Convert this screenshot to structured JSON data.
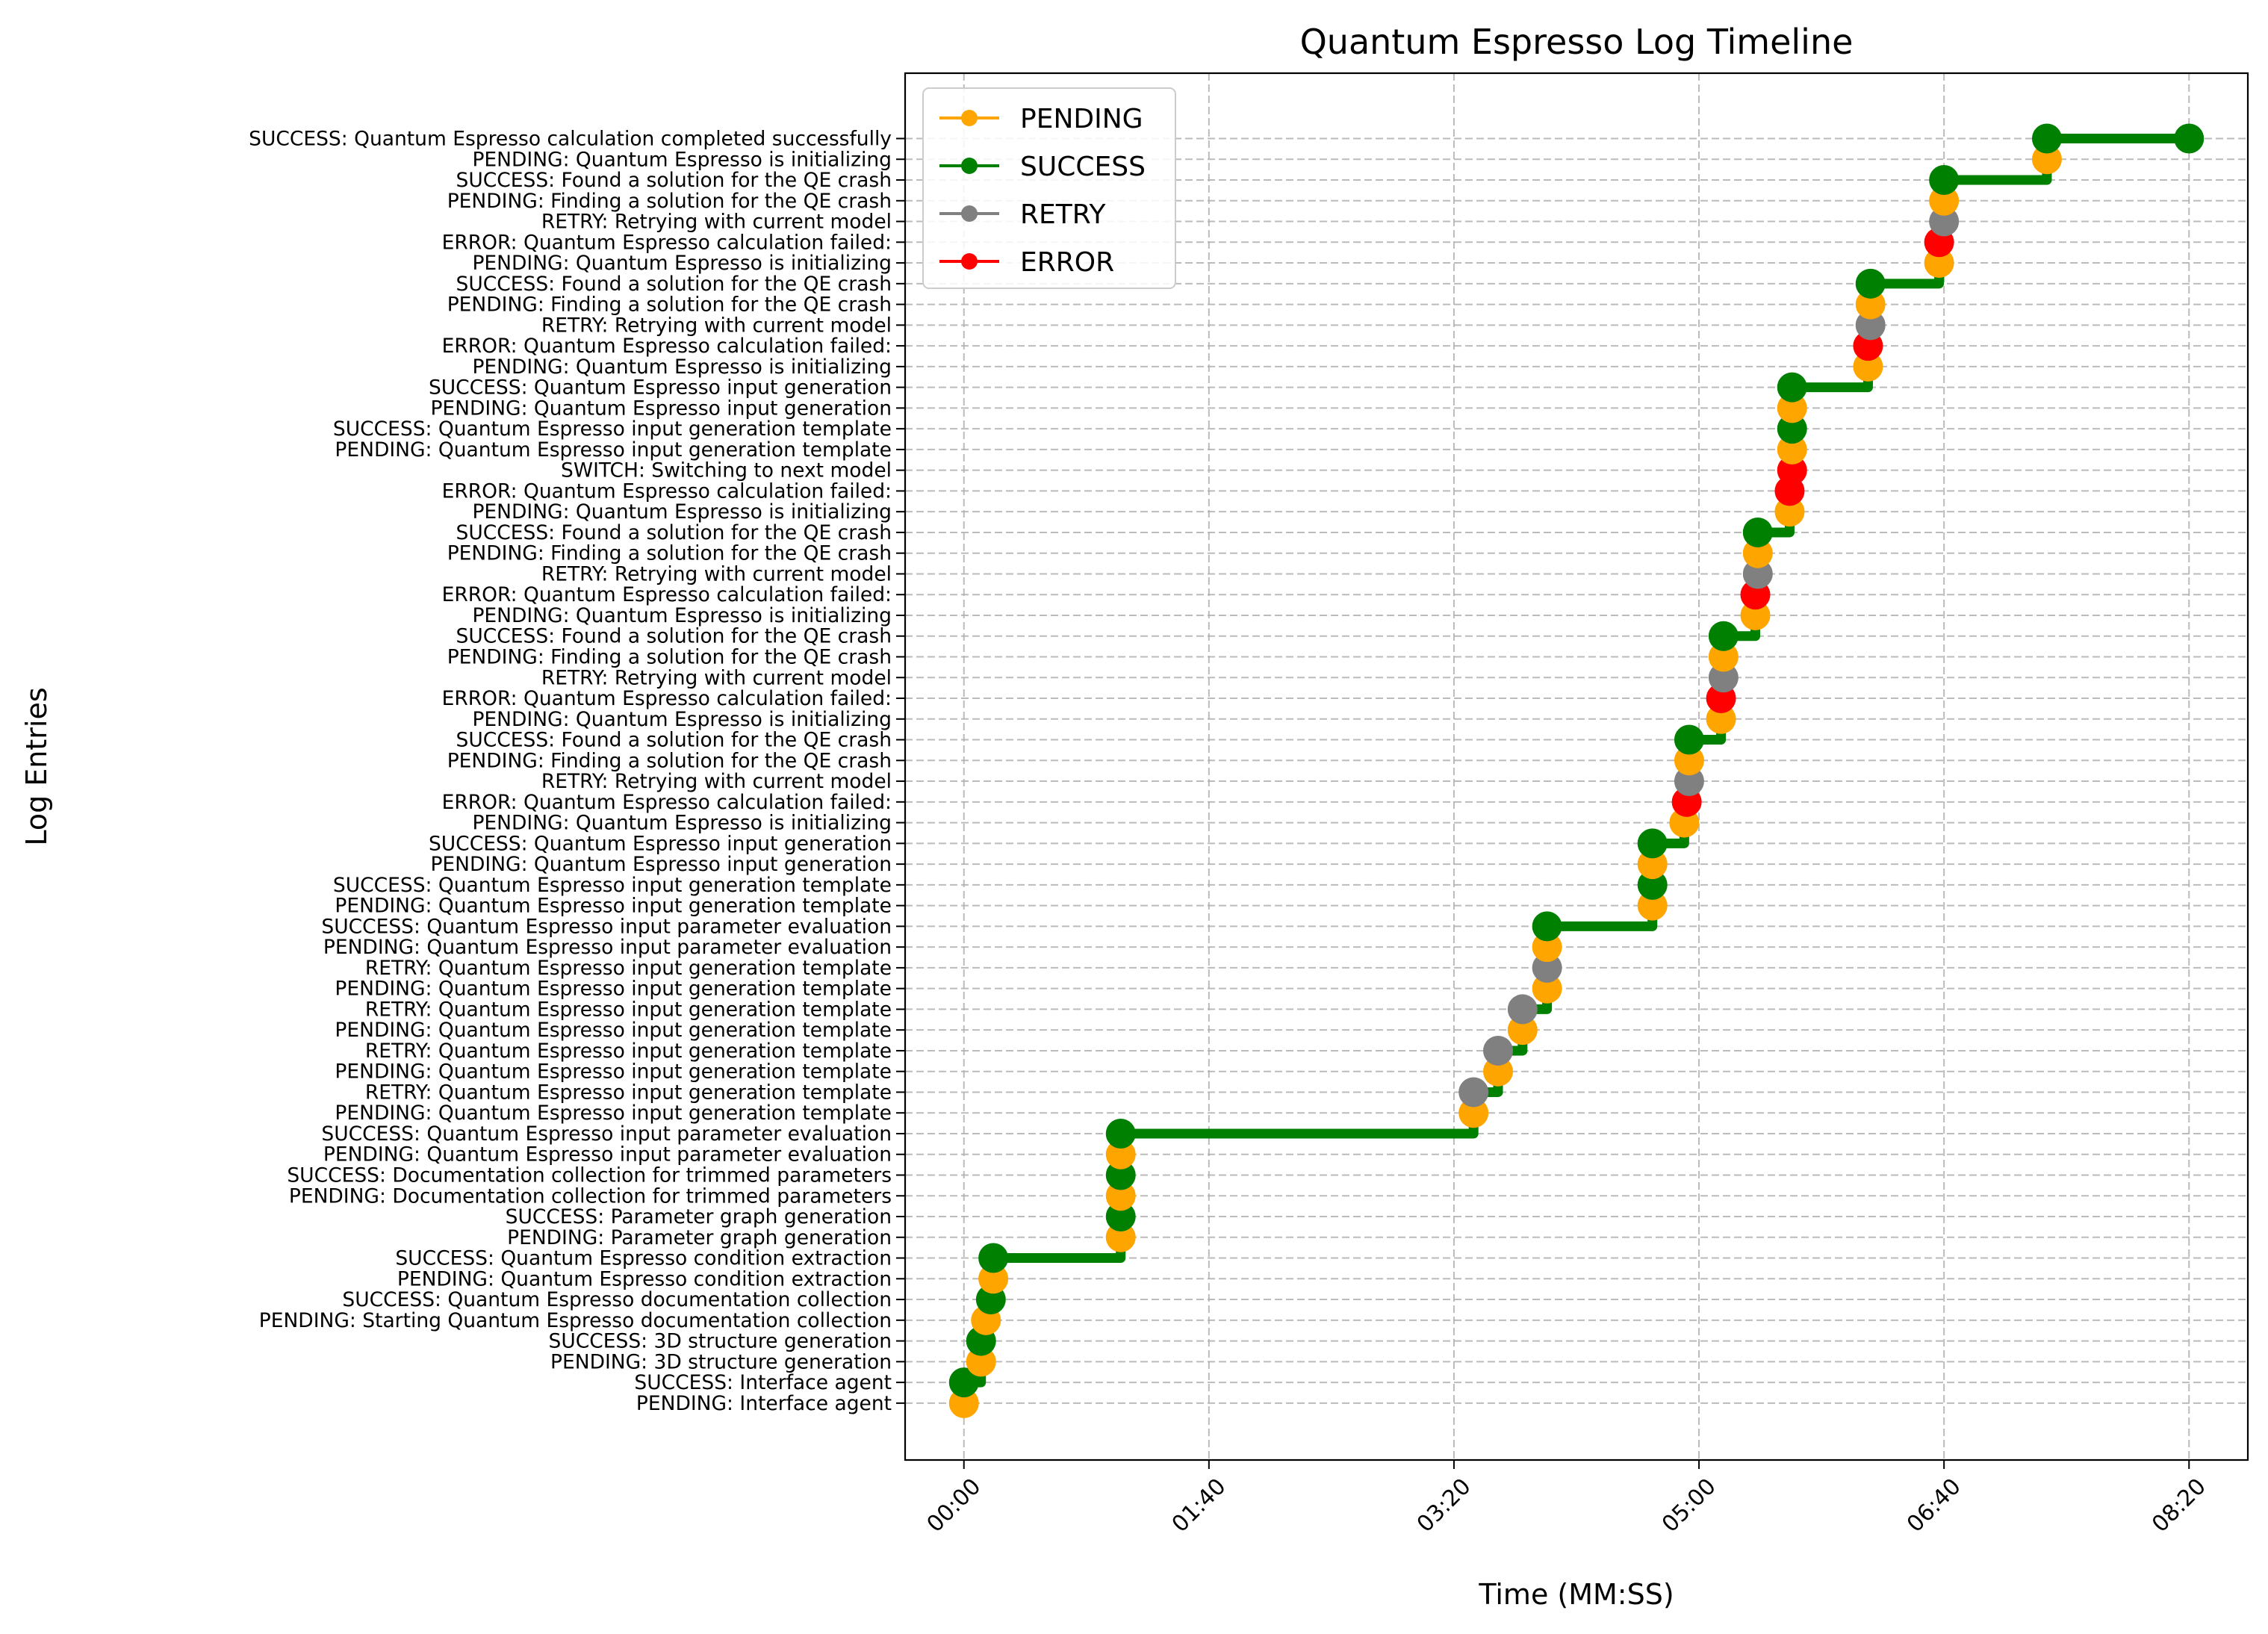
{
  "chart_data": {
    "type": "scatter",
    "title": "Quantum Espresso Log Timeline",
    "xlabel": "Time (MM:SS)",
    "ylabel": "Log Entries",
    "xlim": [
      -24,
      524
    ],
    "xticks": [
      0,
      100,
      200,
      300,
      400,
      500
    ],
    "xtick_labels": [
      "00:00",
      "01:40",
      "03:20",
      "05:00",
      "06:40",
      "08:20"
    ],
    "grid": true,
    "legend_position": "top-left",
    "colors": {
      "PENDING": "#ffa500",
      "SUCCESS": "#008000",
      "RETRY": "#808080",
      "ERROR": "#ff0000",
      "SWITCH": "#ff0000",
      "connector": "#008000",
      "grid": "#b0b0b0"
    },
    "legend": [
      "PENDING",
      "SUCCESS",
      "RETRY",
      "ERROR"
    ],
    "entries": [
      {
        "label": "PENDING: Interface agent",
        "status": "PENDING",
        "t": 0
      },
      {
        "label": "SUCCESS: Interface agent",
        "status": "SUCCESS",
        "t": 0
      },
      {
        "label": "PENDING: 3D structure generation",
        "status": "PENDING",
        "t": 7
      },
      {
        "label": "SUCCESS: 3D structure generation",
        "status": "SUCCESS",
        "t": 7
      },
      {
        "label": "PENDING: Starting Quantum Espresso documentation collection",
        "status": "PENDING",
        "t": 9
      },
      {
        "label": "SUCCESS: Quantum Espresso documentation collection",
        "status": "SUCCESS",
        "t": 11
      },
      {
        "label": "PENDING: Quantum Espresso condition extraction",
        "status": "PENDING",
        "t": 12
      },
      {
        "label": "SUCCESS: Quantum Espresso condition extraction",
        "status": "SUCCESS",
        "t": 12
      },
      {
        "label": "PENDING: Parameter graph generation",
        "status": "PENDING",
        "t": 64
      },
      {
        "label": "SUCCESS: Parameter graph generation",
        "status": "SUCCESS",
        "t": 64
      },
      {
        "label": "PENDING: Documentation collection for trimmed parameters",
        "status": "PENDING",
        "t": 64
      },
      {
        "label": "SUCCESS: Documentation collection for trimmed parameters",
        "status": "SUCCESS",
        "t": 64
      },
      {
        "label": "PENDING: Quantum Espresso input parameter evaluation",
        "status": "PENDING",
        "t": 64
      },
      {
        "label": "SUCCESS: Quantum Espresso input parameter evaluation",
        "status": "SUCCESS",
        "t": 64
      },
      {
        "label": "PENDING: Quantum Espresso input generation template",
        "status": "PENDING",
        "t": 208
      },
      {
        "label": "RETRY: Quantum Espresso input generation template",
        "status": "RETRY",
        "t": 208
      },
      {
        "label": "PENDING: Quantum Espresso input generation template",
        "status": "PENDING",
        "t": 218
      },
      {
        "label": "RETRY: Quantum Espresso input generation template",
        "status": "RETRY",
        "t": 218
      },
      {
        "label": "PENDING: Quantum Espresso input generation template",
        "status": "PENDING",
        "t": 228
      },
      {
        "label": "RETRY: Quantum Espresso input generation template",
        "status": "RETRY",
        "t": 228
      },
      {
        "label": "PENDING: Quantum Espresso input generation template",
        "status": "PENDING",
        "t": 238
      },
      {
        "label": "RETRY: Quantum Espresso input generation template",
        "status": "RETRY",
        "t": 238
      },
      {
        "label": "PENDING: Quantum Espresso input parameter evaluation",
        "status": "PENDING",
        "t": 238
      },
      {
        "label": "SUCCESS: Quantum Espresso input parameter evaluation",
        "status": "SUCCESS",
        "t": 238
      },
      {
        "label": "PENDING: Quantum Espresso input generation template",
        "status": "PENDING",
        "t": 281
      },
      {
        "label": "SUCCESS: Quantum Espresso input generation template",
        "status": "SUCCESS",
        "t": 281
      },
      {
        "label": "PENDING: Quantum Espresso input generation",
        "status": "PENDING",
        "t": 281
      },
      {
        "label": "SUCCESS: Quantum Espresso input generation",
        "status": "SUCCESS",
        "t": 281
      },
      {
        "label": "PENDING: Quantum Espresso is initializing",
        "status": "PENDING",
        "t": 294
      },
      {
        "label": "ERROR: Quantum Espresso calculation failed: ",
        "status": "ERROR",
        "t": 295
      },
      {
        "label": "RETRY: Retrying with current model",
        "status": "RETRY",
        "t": 296
      },
      {
        "label": "PENDING: Finding a solution for the QE crash",
        "status": "PENDING",
        "t": 296
      },
      {
        "label": "SUCCESS: Found a solution for the QE crash",
        "status": "SUCCESS",
        "t": 296
      },
      {
        "label": "PENDING: Quantum Espresso is initializing",
        "status": "PENDING",
        "t": 309
      },
      {
        "label": "ERROR: Quantum Espresso calculation failed: ",
        "status": "ERROR",
        "t": 309
      },
      {
        "label": "RETRY: Retrying with current model",
        "status": "RETRY",
        "t": 310
      },
      {
        "label": "PENDING: Finding a solution for the QE crash",
        "status": "PENDING",
        "t": 310
      },
      {
        "label": "SUCCESS: Found a solution for the QE crash",
        "status": "SUCCESS",
        "t": 310
      },
      {
        "label": "PENDING: Quantum Espresso is initializing",
        "status": "PENDING",
        "t": 323
      },
      {
        "label": "ERROR: Quantum Espresso calculation failed: ",
        "status": "ERROR",
        "t": 323
      },
      {
        "label": "RETRY: Retrying with current model",
        "status": "RETRY",
        "t": 324
      },
      {
        "label": "PENDING: Finding a solution for the QE crash",
        "status": "PENDING",
        "t": 324
      },
      {
        "label": "SUCCESS: Found a solution for the QE crash",
        "status": "SUCCESS",
        "t": 324
      },
      {
        "label": "PENDING: Quantum Espresso is initializing",
        "status": "PENDING",
        "t": 337
      },
      {
        "label": "ERROR: Quantum Espresso calculation failed: ",
        "status": "ERROR",
        "t": 337
      },
      {
        "label": "SWITCH: Switching to next model",
        "status": "SWITCH",
        "t": 338
      },
      {
        "label": "PENDING: Quantum Espresso input generation template",
        "status": "PENDING",
        "t": 338
      },
      {
        "label": "SUCCESS: Quantum Espresso input generation template",
        "status": "SUCCESS",
        "t": 338
      },
      {
        "label": "PENDING: Quantum Espresso input generation",
        "status": "PENDING",
        "t": 338
      },
      {
        "label": "SUCCESS: Quantum Espresso input generation",
        "status": "SUCCESS",
        "t": 338
      },
      {
        "label": "PENDING: Quantum Espresso is initializing",
        "status": "PENDING",
        "t": 369
      },
      {
        "label": "ERROR: Quantum Espresso calculation failed: ",
        "status": "ERROR",
        "t": 369
      },
      {
        "label": "RETRY: Retrying with current model",
        "status": "RETRY",
        "t": 370
      },
      {
        "label": "PENDING: Finding a solution for the QE crash",
        "status": "PENDING",
        "t": 370
      },
      {
        "label": "SUCCESS: Found a solution for the QE crash",
        "status": "SUCCESS",
        "t": 370
      },
      {
        "label": "PENDING: Quantum Espresso is initializing",
        "status": "PENDING",
        "t": 398
      },
      {
        "label": "ERROR: Quantum Espresso calculation failed: ",
        "status": "ERROR",
        "t": 398
      },
      {
        "label": "RETRY: Retrying with current model",
        "status": "RETRY",
        "t": 400
      },
      {
        "label": "PENDING: Finding a solution for the QE crash",
        "status": "PENDING",
        "t": 400
      },
      {
        "label": "SUCCESS: Found a solution for the QE crash",
        "status": "SUCCESS",
        "t": 400
      },
      {
        "label": "PENDING: Quantum Espresso is initializing",
        "status": "PENDING",
        "t": 442
      },
      {
        "label": "SUCCESS: Quantum Espresso calculation completed successfully",
        "status": "SUCCESS",
        "t": 442
      }
    ],
    "final_point": {
      "status": "SUCCESS",
      "t": 500
    }
  }
}
